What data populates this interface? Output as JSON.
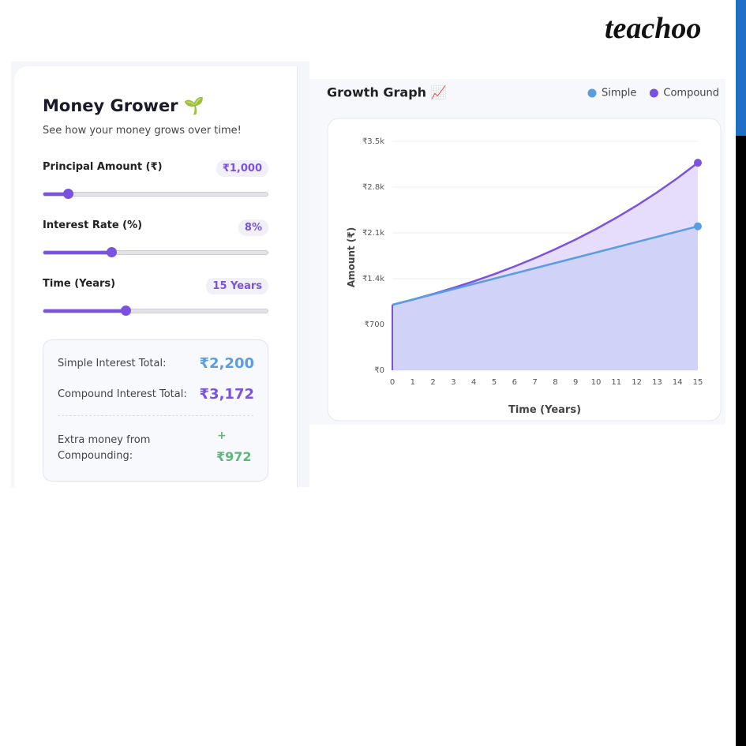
{
  "brand": "teachoo",
  "panel": {
    "title": "Money Grower 🌱",
    "subtitle": "See how your money grows over time!",
    "controls": [
      {
        "label": "Principal Amount (₹)",
        "value": "₹1,000"
      },
      {
        "label": "Interest Rate (%)",
        "value": "8%"
      },
      {
        "label": "Time (Years)",
        "value": "15 Years"
      }
    ],
    "summary": {
      "simple_label": "Simple Interest Total:",
      "simple_value": "₹2,200",
      "compound_label": "Compound Interest Total:",
      "compound_value": "₹3,172",
      "extra_label": "Extra money from Compounding:",
      "extra_sign": "+",
      "extra_value": "₹972"
    }
  },
  "chart_data": {
    "type": "line",
    "title": "Growth Graph 📈",
    "x_label": "Time (Years)",
    "y_label": "Amount (₹)",
    "x": [
      0,
      1,
      2,
      3,
      4,
      5,
      6,
      7,
      8,
      9,
      10,
      11,
      12,
      13,
      14,
      15
    ],
    "xlim": [
      0,
      15
    ],
    "ylim": [
      0,
      3500
    ],
    "yticks": [
      {
        "value": 0,
        "label": "₹0"
      },
      {
        "value": 700,
        "label": "₹700"
      },
      {
        "value": 1400,
        "label": "₹1.4k"
      },
      {
        "value": 2100,
        "label": "₹2.1k"
      },
      {
        "value": 2800,
        "label": "₹2.8k"
      },
      {
        "value": 3500,
        "label": "₹3.5k"
      }
    ],
    "grid": true,
    "legend": "top-right",
    "series": [
      {
        "name": "Simple",
        "color": "#5a9de0",
        "fill": "#cdd0f7",
        "values": [
          1000,
          1080,
          1160,
          1240,
          1320,
          1400,
          1480,
          1560,
          1640,
          1720,
          1800,
          1880,
          1960,
          2040,
          2120,
          2200
        ]
      },
      {
        "name": "Compound",
        "color": "#7b52e0",
        "fill": "#e6dcfb",
        "values": [
          1000,
          1080,
          1166,
          1260,
          1360,
          1469,
          1587,
          1714,
          1851,
          1999,
          2159,
          2332,
          2518,
          2720,
          2937,
          3172
        ]
      }
    ]
  }
}
